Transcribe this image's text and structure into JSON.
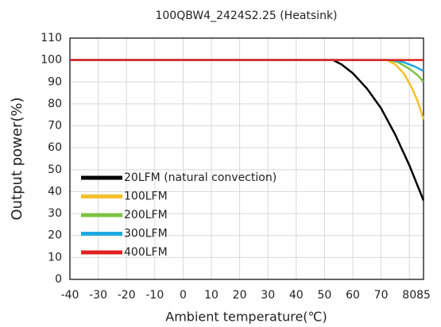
{
  "chart_data": {
    "type": "line",
    "title": "100QBW4_2424S2.25 (Heatsink)",
    "x_label": "Ambient temperature(℃)",
    "y_label": "Output power(%)",
    "series": [
      {
        "name": "20LFM (natural convection)",
        "color": "#000000",
        "x": [
          -40,
          53,
          56,
          60,
          65,
          70,
          75,
          80,
          85
        ],
        "values": [
          100,
          100,
          98,
          94,
          87,
          78,
          66,
          52,
          36
        ]
      },
      {
        "name": "100LFM",
        "color": "#f5c02b",
        "x": [
          -40,
          72,
          75,
          78,
          81,
          83,
          85
        ],
        "values": [
          100,
          100,
          98,
          94,
          87,
          81,
          73
        ]
      },
      {
        "name": "200LFM",
        "color": "#7ec242",
        "x": [
          -40,
          73,
          76,
          80,
          83,
          85
        ],
        "values": [
          100,
          100,
          99,
          96,
          93,
          90
        ]
      },
      {
        "name": "300LFM",
        "color": "#1fa9e1",
        "x": [
          -40,
          74,
          78,
          82,
          85
        ],
        "values": [
          100,
          100,
          99,
          97,
          95
        ]
      },
      {
        "name": "400LFM",
        "color": "#e02020",
        "x": [
          -40,
          85
        ],
        "values": [
          100,
          100
        ]
      }
    ],
    "xlim": [
      -40,
      85
    ],
    "xticks": [
      -40,
      -30,
      -20,
      -10,
      0,
      10,
      20,
      30,
      40,
      50,
      60,
      70,
      80,
      85
    ],
    "ylim": [
      0,
      110
    ],
    "yticks": [
      0,
      10,
      20,
      30,
      40,
      50,
      60,
      70,
      80,
      90,
      100,
      110
    ],
    "grid": true,
    "legend": "lower left"
  }
}
